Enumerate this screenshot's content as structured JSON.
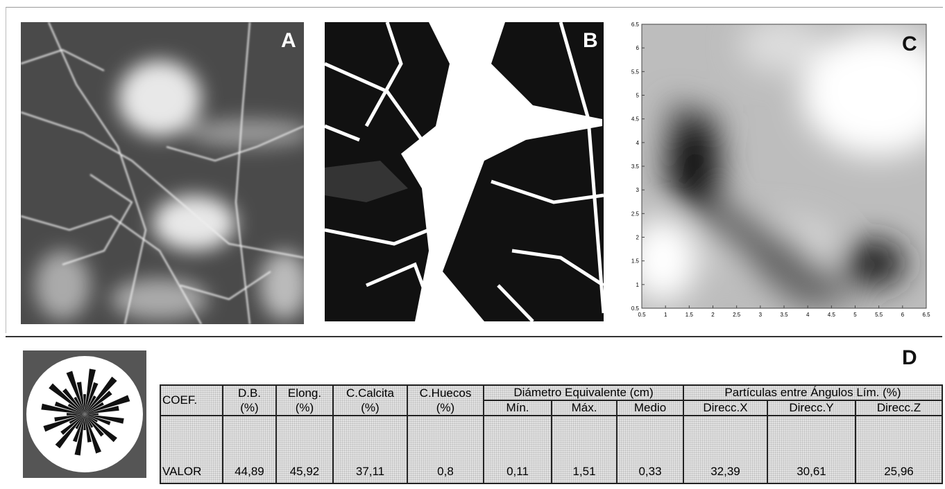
{
  "panels": {
    "a": {
      "label": "A"
    },
    "b": {
      "label": "B"
    },
    "c": {
      "label": "C"
    },
    "d": {
      "label": "D"
    }
  },
  "contour": {
    "xlim": [
      0.5,
      6.5
    ],
    "ylim": [
      0.5,
      6.5
    ],
    "xticks": [
      0.5,
      1,
      1.5,
      2,
      2.5,
      3,
      3.5,
      4,
      4.5,
      5,
      5.5,
      6,
      6.5
    ],
    "yticks": [
      0.5,
      1,
      1.5,
      2,
      2.5,
      3,
      3.5,
      4,
      4.5,
      5,
      5.5,
      6,
      6.5
    ]
  },
  "table": {
    "header_top": [
      "COEF.",
      "D.B.",
      "Elong.",
      "C.Calcita",
      "C.Huecos",
      "Diámetro Equivalente (cm)",
      "Partículas entre Ángulos Lím. (%)"
    ],
    "header_sub": [
      "(%)",
      "(%)",
      "(%)",
      "(%)",
      "Mín.",
      "Máx.",
      "Medio",
      "Direcc.X",
      "Direcc.Y",
      "Direcc.Z"
    ],
    "rows": [
      [
        "VALOR",
        "44,89",
        "45,92",
        "37,11",
        "0,8",
        "0,11",
        "1,51",
        "0,33",
        "32,39",
        "30,61",
        "25,96"
      ]
    ]
  }
}
